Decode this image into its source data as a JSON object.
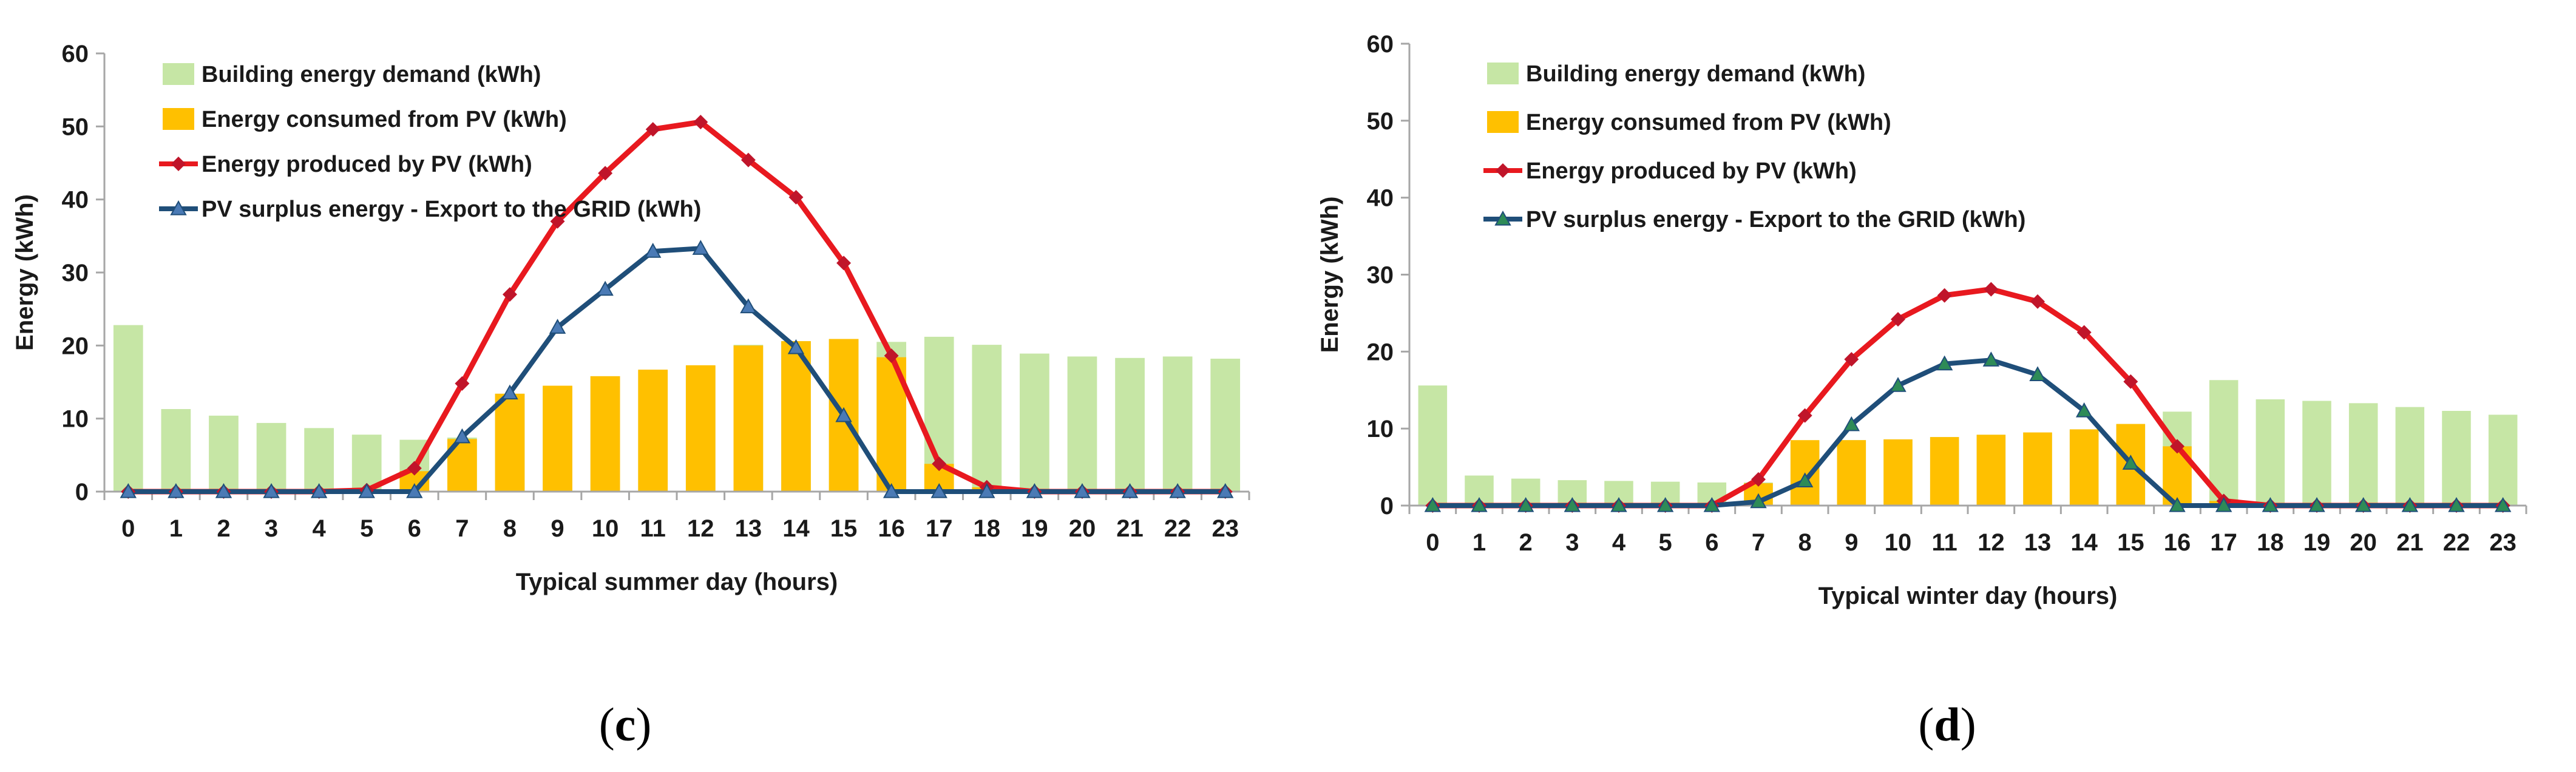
{
  "figure": {
    "caption_c": {
      "open": "(",
      "letter": "c",
      "close": ")"
    },
    "caption_d": {
      "open": "(",
      "letter": "d",
      "close": ")"
    }
  },
  "colors": {
    "demand": "#c6e6a5",
    "consumed": "#ffc000",
    "produced": "#e8191f",
    "surplus": "#1f4e79",
    "produced_marker": "#c0152a",
    "surplus_marker_c": "#4a7ab5",
    "surplus_marker_d": "#2e8b57",
    "axis": "#a6a6a6"
  },
  "legend": {
    "demand": "Building energy demand (kWh)",
    "consumed": "Energy consumed from PV (kWh)",
    "produced": "Energy produced by PV (kWh)",
    "surplus": "PV surplus energy - Export to the GRID (kWh)"
  },
  "chart_data": [
    {
      "type": "bar",
      "title": "",
      "xlabel": "Typical summer day (hours)",
      "ylabel": "Energy (kWh)",
      "ylim": [
        0,
        60
      ],
      "yticks": [
        0,
        10,
        20,
        30,
        40,
        50,
        60
      ],
      "categories": [
        "0",
        "1",
        "2",
        "3",
        "4",
        "5",
        "6",
        "7",
        "8",
        "9",
        "10",
        "11",
        "12",
        "13",
        "14",
        "15",
        "16",
        "17",
        "18",
        "19",
        "20",
        "21",
        "22",
        "23"
      ],
      "legend_position": "top-left",
      "series": [
        {
          "name": "Building energy demand (kWh)",
          "kind": "bar",
          "values": [
            22.8,
            11.3,
            10.4,
            9.4,
            8.7,
            7.8,
            7.1,
            7.4,
            13.4,
            14.4,
            15.8,
            16.5,
            17.2,
            20.1,
            20.6,
            20.9,
            20.5,
            21.2,
            20.1,
            18.9,
            18.5,
            18.3,
            18.5,
            18.2
          ]
        },
        {
          "name": "Energy consumed from PV (kWh)",
          "kind": "bar",
          "values": [
            0,
            0,
            0,
            0,
            0,
            0,
            2.8,
            7.2,
            13.4,
            14.5,
            15.8,
            16.7,
            17.3,
            20.0,
            20.6,
            20.9,
            18.4,
            3.8,
            0.6,
            0,
            0,
            0,
            0,
            0
          ]
        },
        {
          "name": "Energy produced by PV (kWh)",
          "kind": "line",
          "values": [
            0,
            0,
            0,
            0,
            0,
            0.2,
            3.2,
            14.8,
            27.0,
            37.0,
            43.6,
            49.6,
            50.6,
            45.4,
            40.3,
            31.3,
            18.6,
            3.8,
            0.6,
            0,
            0,
            0,
            0,
            0
          ]
        },
        {
          "name": "PV surplus energy - Export to the GRID (kWh)",
          "kind": "line",
          "values": [
            0,
            0,
            0,
            0,
            0,
            0,
            0,
            7.5,
            13.5,
            22.5,
            27.7,
            32.9,
            33.3,
            25.3,
            19.7,
            10.4,
            0,
            0,
            0,
            0,
            0,
            0,
            0,
            0
          ]
        }
      ]
    },
    {
      "type": "bar",
      "title": "",
      "xlabel": "Typical winter day (hours)",
      "ylabel": "Energy (kWh)",
      "ylim": [
        0,
        60
      ],
      "yticks": [
        0,
        10,
        20,
        30,
        40,
        50,
        60
      ],
      "categories": [
        "0",
        "1",
        "2",
        "3",
        "4",
        "5",
        "6",
        "7",
        "8",
        "9",
        "10",
        "11",
        "12",
        "13",
        "14",
        "15",
        "16",
        "17",
        "18",
        "19",
        "20",
        "21",
        "22",
        "23"
      ],
      "legend_position": "top-left",
      "series": [
        {
          "name": "Building energy demand (kWh)",
          "kind": "bar",
          "values": [
            15.6,
            3.9,
            3.5,
            3.3,
            3.2,
            3.1,
            3.0,
            3.0,
            8.3,
            8.5,
            8.6,
            8.9,
            9.2,
            9.5,
            9.9,
            10.6,
            12.2,
            16.3,
            13.8,
            13.6,
            13.3,
            12.8,
            12.3,
            11.8
          ]
        },
        {
          "name": "Energy consumed from PV (kWh)",
          "kind": "bar",
          "values": [
            0,
            0,
            0,
            0,
            0,
            0,
            0,
            2.9,
            8.5,
            8.5,
            8.6,
            8.9,
            9.2,
            9.5,
            9.9,
            10.6,
            7.7,
            0.6,
            0,
            0,
            0,
            0,
            0,
            0
          ]
        },
        {
          "name": "Energy produced by PV (kWh)",
          "kind": "line",
          "values": [
            0,
            0,
            0,
            0,
            0,
            0,
            0,
            3.4,
            11.7,
            19.0,
            24.2,
            27.3,
            28.1,
            26.5,
            22.5,
            16.1,
            7.7,
            0.6,
            0,
            0,
            0,
            0,
            0,
            0
          ]
        },
        {
          "name": "PV surplus energy - Export to the GRID (kWh)",
          "kind": "line",
          "values": [
            0,
            0,
            0,
            0,
            0,
            0,
            0,
            0.5,
            3.2,
            10.5,
            15.6,
            18.4,
            18.9,
            17.0,
            12.3,
            5.5,
            0,
            0,
            0,
            0,
            0,
            0,
            0,
            0
          ]
        }
      ]
    }
  ]
}
